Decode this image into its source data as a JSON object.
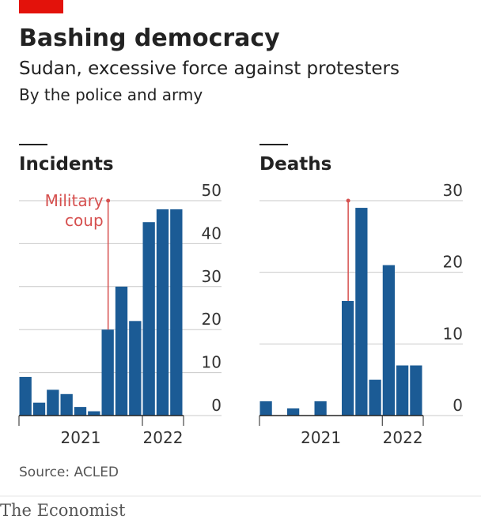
{
  "title": "Bashing democracy",
  "subtitle": "Sudan, excessive force against protesters",
  "note": "By the police and army",
  "source": "Source: ACLED",
  "footer": "The Economist",
  "chart_data": [
    {
      "type": "bar",
      "title": "Incidents",
      "categories": [
        null,
        null,
        null,
        null,
        null,
        null,
        null,
        null,
        null,
        null,
        null,
        null
      ],
      "x_groups": [
        {
          "label": "2021",
          "count": 9
        },
        {
          "label": "2022",
          "count": 3
        }
      ],
      "values": [
        9,
        3,
        6,
        5,
        2,
        1,
        20,
        30,
        22,
        45,
        48,
        48
      ],
      "color": "#1b5b95",
      "ylim": [
        0,
        50
      ],
      "yticks": [
        0,
        10,
        20,
        30,
        40,
        50
      ],
      "grid": true,
      "annotation": {
        "lines": [
          "Military",
          "coup"
        ],
        "category": 6,
        "color": "#d6504f"
      }
    },
    {
      "type": "bar",
      "title": "Deaths",
      "categories": [
        null,
        null,
        null,
        null,
        null,
        null,
        null,
        null,
        null,
        null,
        null,
        null
      ],
      "x_groups": [
        {
          "label": "2021",
          "count": 9
        },
        {
          "label": "2022",
          "count": 3
        }
      ],
      "values": [
        2,
        0,
        1,
        0,
        2,
        0,
        16,
        29,
        5,
        21,
        7,
        7
      ],
      "color": "#1b5b95",
      "ylim": [
        0,
        30
      ],
      "yticks": [
        0,
        10,
        20,
        30
      ],
      "grid": true,
      "annotation": {
        "category": 6,
        "color": "#d6504f"
      }
    }
  ]
}
